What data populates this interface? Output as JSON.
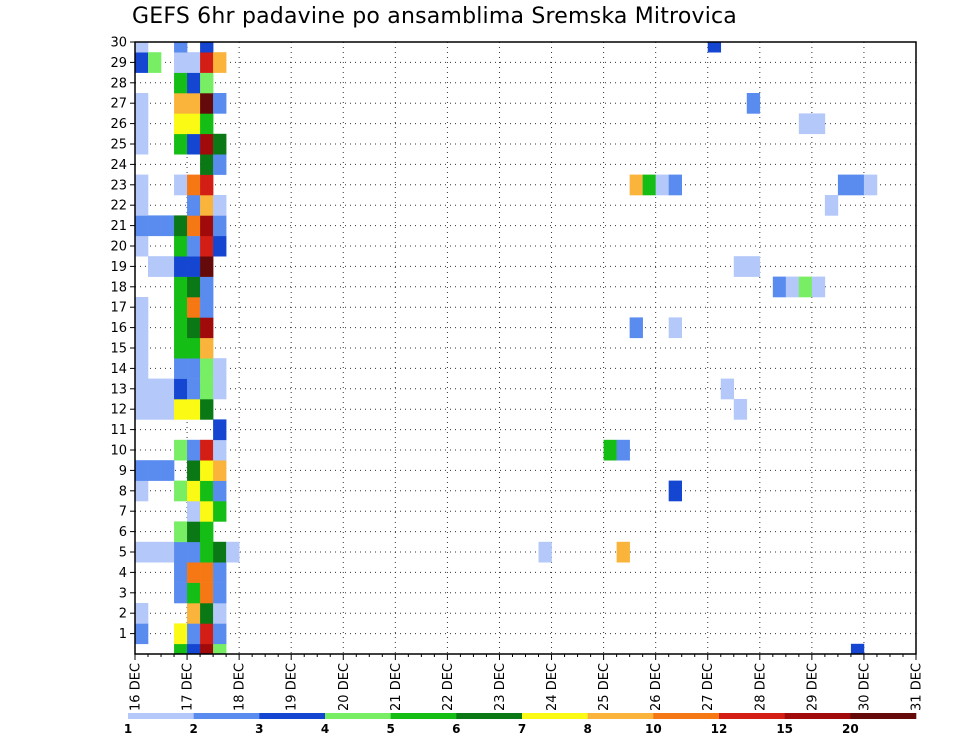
{
  "chart_data": {
    "type": "heatmap",
    "title": "GEFS 6hr padavine po ansamblima Sremska Mitrovica",
    "xlabel": "",
    "ylabel": "",
    "x_tick_labels": [
      "16 DEC",
      "17 DEC",
      "18 DEC",
      "19 DEC",
      "20 DEC",
      "21 DEC",
      "22 DEC",
      "23 DEC",
      "24 DEC",
      "25 DEC",
      "26 DEC",
      "27 DEC",
      "28 DEC",
      "29 DEC",
      "30 DEC",
      "31 DEC"
    ],
    "y_tick_labels": [
      "1",
      "2",
      "3",
      "4",
      "5",
      "6",
      "7",
      "8",
      "9",
      "10",
      "11",
      "12",
      "13",
      "14",
      "15",
      "16",
      "17",
      "18",
      "19",
      "20",
      "21",
      "22",
      "23",
      "24",
      "25",
      "26",
      "27",
      "28",
      "29",
      "30"
    ],
    "xlim": [
      0,
      60
    ],
    "ylim": [
      0,
      30
    ],
    "grid": true,
    "colorbar": {
      "position": "bottom",
      "labels": [
        "1",
        "2",
        "3",
        "4",
        "5",
        "6",
        "7",
        "8",
        "10",
        "12",
        "15",
        "20"
      ],
      "colors": [
        "#b4c8fa",
        "#5a8cf0",
        "#1446d2",
        "#78ee64",
        "#14be14",
        "#0a7814",
        "#fafa14",
        "#fab43c",
        "#f57814",
        "#d21e14",
        "#a00a0a",
        "#640a0a"
      ]
    },
    "cells": [
      [
        0,
        1,
        2
      ],
      [
        0,
        2,
        1
      ],
      [
        0,
        5,
        1
      ],
      [
        0,
        8,
        1
      ],
      [
        0,
        9,
        2
      ],
      [
        0,
        12,
        1
      ],
      [
        0,
        13,
        1
      ],
      [
        0,
        14,
        1
      ],
      [
        0,
        15,
        1
      ],
      [
        0,
        16,
        1
      ],
      [
        0,
        17,
        1
      ],
      [
        0,
        20,
        1
      ],
      [
        0,
        21,
        2
      ],
      [
        0,
        22,
        1
      ],
      [
        0,
        23,
        1
      ],
      [
        0,
        25,
        1
      ],
      [
        0,
        26,
        1
      ],
      [
        0,
        27,
        1
      ],
      [
        0,
        29,
        3
      ],
      [
        0,
        30,
        1
      ],
      [
        1,
        5,
        1
      ],
      [
        1,
        9,
        2
      ],
      [
        1,
        12,
        1
      ],
      [
        1,
        13,
        1
      ],
      [
        1,
        19,
        1
      ],
      [
        1,
        21,
        2
      ],
      [
        1,
        29,
        4
      ],
      [
        2,
        5,
        1
      ],
      [
        2,
        9,
        2
      ],
      [
        2,
        12,
        1
      ],
      [
        2,
        13,
        1
      ],
      [
        2,
        19,
        1
      ],
      [
        2,
        21,
        2
      ],
      [
        3,
        0,
        5
      ],
      [
        3,
        1,
        7
      ],
      [
        3,
        3,
        2
      ],
      [
        3,
        4,
        2
      ],
      [
        3,
        5,
        2
      ],
      [
        3,
        6,
        4
      ],
      [
        3,
        8,
        4
      ],
      [
        3,
        10,
        4
      ],
      [
        3,
        12,
        7
      ],
      [
        3,
        13,
        3
      ],
      [
        3,
        14,
        2
      ],
      [
        3,
        15,
        5
      ],
      [
        3,
        16,
        5
      ],
      [
        3,
        17,
        5
      ],
      [
        3,
        18,
        5
      ],
      [
        3,
        19,
        3
      ],
      [
        3,
        20,
        5
      ],
      [
        3,
        21,
        6
      ],
      [
        3,
        23,
        1
      ],
      [
        3,
        25,
        5
      ],
      [
        3,
        26,
        7
      ],
      [
        3,
        27,
        8
      ],
      [
        3,
        28,
        5
      ],
      [
        3,
        29,
        1
      ],
      [
        3,
        30,
        2
      ],
      [
        4,
        0,
        3
      ],
      [
        4,
        1,
        2
      ],
      [
        4,
        2,
        8
      ],
      [
        4,
        3,
        5
      ],
      [
        4,
        4,
        9
      ],
      [
        4,
        5,
        2
      ],
      [
        4,
        6,
        6
      ],
      [
        4,
        7,
        1
      ],
      [
        4,
        8,
        7
      ],
      [
        4,
        9,
        6
      ],
      [
        4,
        10,
        2
      ],
      [
        4,
        12,
        7
      ],
      [
        4,
        13,
        2
      ],
      [
        4,
        14,
        2
      ],
      [
        4,
        15,
        5
      ],
      [
        4,
        16,
        6
      ],
      [
        4,
        17,
        9
      ],
      [
        4,
        18,
        6
      ],
      [
        4,
        19,
        3
      ],
      [
        4,
        20,
        2
      ],
      [
        4,
        21,
        9
      ],
      [
        4,
        22,
        2
      ],
      [
        4,
        23,
        9
      ],
      [
        4,
        25,
        3
      ],
      [
        4,
        26,
        7
      ],
      [
        4,
        27,
        8
      ],
      [
        4,
        28,
        3
      ],
      [
        4,
        29,
        1
      ],
      [
        5,
        0,
        11
      ],
      [
        5,
        1,
        10
      ],
      [
        5,
        2,
        6
      ],
      [
        5,
        3,
        9
      ],
      [
        5,
        4,
        9
      ],
      [
        5,
        5,
        5
      ],
      [
        5,
        6,
        5
      ],
      [
        5,
        7,
        7
      ],
      [
        5,
        8,
        5
      ],
      [
        5,
        9,
        7
      ],
      [
        5,
        10,
        10
      ],
      [
        5,
        12,
        6
      ],
      [
        5,
        13,
        4
      ],
      [
        5,
        14,
        4
      ],
      [
        5,
        15,
        8
      ],
      [
        5,
        16,
        11
      ],
      [
        5,
        17,
        2
      ],
      [
        5,
        18,
        2
      ],
      [
        5,
        19,
        12
      ],
      [
        5,
        20,
        10
      ],
      [
        5,
        21,
        11
      ],
      [
        5,
        22,
        8
      ],
      [
        5,
        23,
        10
      ],
      [
        5,
        24,
        6
      ],
      [
        5,
        25,
        11
      ],
      [
        5,
        26,
        5
      ],
      [
        5,
        27,
        12
      ],
      [
        5,
        28,
        4
      ],
      [
        5,
        29,
        10
      ],
      [
        5,
        30,
        3
      ],
      [
        6,
        0,
        4
      ],
      [
        6,
        1,
        2
      ],
      [
        6,
        2,
        1
      ],
      [
        6,
        3,
        2
      ],
      [
        6,
        4,
        2
      ],
      [
        6,
        5,
        6
      ],
      [
        6,
        7,
        5
      ],
      [
        6,
        8,
        2
      ],
      [
        6,
        9,
        8
      ],
      [
        6,
        10,
        1
      ],
      [
        6,
        11,
        3
      ],
      [
        6,
        13,
        1
      ],
      [
        6,
        14,
        1
      ],
      [
        6,
        20,
        3
      ],
      [
        6,
        21,
        2
      ],
      [
        6,
        22,
        1
      ],
      [
        6,
        24,
        2
      ],
      [
        6,
        25,
        6
      ],
      [
        6,
        27,
        2
      ],
      [
        6,
        29,
        8
      ],
      [
        7,
        5,
        1
      ],
      [
        31,
        5,
        1
      ],
      [
        36,
        10,
        5
      ],
      [
        37,
        5,
        8
      ],
      [
        37,
        10,
        2
      ],
      [
        38,
        16,
        2
      ],
      [
        38,
        23,
        8
      ],
      [
        39,
        23,
        5
      ],
      [
        40,
        23,
        1
      ],
      [
        41,
        8,
        3
      ],
      [
        41,
        16,
        1
      ],
      [
        41,
        23,
        2
      ],
      [
        44,
        30,
        3
      ],
      [
        45,
        13,
        1
      ],
      [
        46,
        12,
        1
      ],
      [
        46,
        19,
        1
      ],
      [
        47,
        19,
        1
      ],
      [
        47,
        27,
        2
      ],
      [
        49,
        18,
        2
      ],
      [
        50,
        18,
        1
      ],
      [
        51,
        18,
        4
      ],
      [
        51,
        26,
        1
      ],
      [
        52,
        18,
        1
      ],
      [
        52,
        26,
        1
      ],
      [
        53,
        22,
        1
      ],
      [
        54,
        23,
        2
      ],
      [
        55,
        23,
        2
      ],
      [
        55,
        0,
        3
      ],
      [
        56,
        23,
        1
      ]
    ]
  }
}
